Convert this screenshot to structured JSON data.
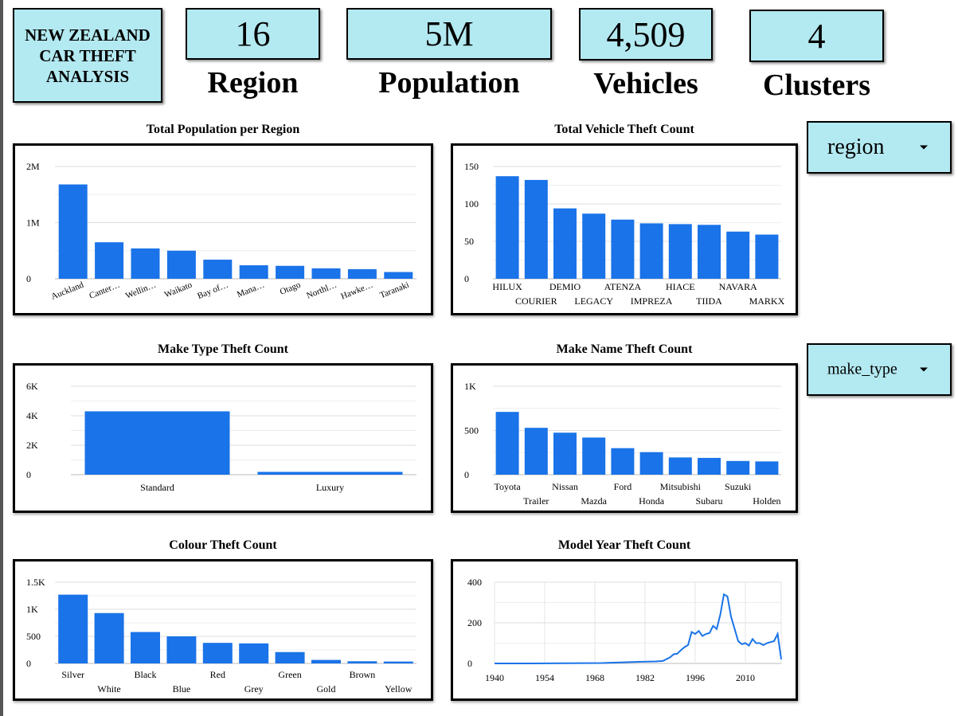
{
  "header": {
    "title": "NEW ZEALAND CAR THEFT ANALYSIS",
    "kpis": [
      {
        "value": "16",
        "label": "Region"
      },
      {
        "value": "5M",
        "label": "Population"
      },
      {
        "value": "4,509",
        "label": "Vehicles"
      },
      {
        "value": "4",
        "label": "Clusters"
      }
    ]
  },
  "filters": {
    "region": {
      "selected": "region"
    },
    "make_type": {
      "selected": "make_type"
    }
  },
  "colors": {
    "bar": "#1a73e8",
    "accent": "#b3e9f1",
    "grid": "#e0e0e0"
  },
  "icons": {
    "dropdown": "caret-down-icon"
  },
  "chart_data": [
    {
      "id": "population",
      "type": "bar",
      "title": "Total Population per Region",
      "categories": [
        "Auckland",
        "Canter…",
        "Wellin…",
        "Waikato",
        "Bay of…",
        "Mana…",
        "Otago",
        "Northl…",
        "Hawke…",
        "Taranaki"
      ],
      "values": [
        1680000,
        650000,
        540000,
        500000,
        340000,
        240000,
        230000,
        185000,
        170000,
        120000
      ],
      "ylim": [
        0,
        2000000
      ],
      "yticks": [
        {
          "v": 0,
          "label": "0"
        },
        {
          "v": 1000000,
          "label": "1M"
        },
        {
          "v": 2000000,
          "label": "2M"
        }
      ],
      "grid": true,
      "rotated_labels": true
    },
    {
      "id": "vehicle",
      "type": "bar",
      "title": "Total Vehicle Theft Count",
      "categories": [
        "HILUX",
        "COURIER",
        "DEMIO",
        "LEGACY",
        "ATENZA",
        "IMPREZA",
        "HIACE",
        "TIIDA",
        "NAVARA",
        "MARKX"
      ],
      "values": [
        137,
        132,
        94,
        87,
        79,
        74,
        73,
        72,
        63,
        59
      ],
      "ylim": [
        0,
        150
      ],
      "yticks": [
        {
          "v": 0,
          "label": "0"
        },
        {
          "v": 50,
          "label": "50"
        },
        {
          "v": 100,
          "label": "100"
        },
        {
          "v": 150,
          "label": "150"
        }
      ],
      "grid": true
    },
    {
      "id": "maketype",
      "type": "bar",
      "title": "Make Type Theft Count",
      "categories": [
        "Standard",
        "Luxury"
      ],
      "values": [
        4300,
        190
      ],
      "ylim": [
        0,
        6000
      ],
      "yticks": [
        {
          "v": 0,
          "label": "0"
        },
        {
          "v": 2000,
          "label": "2K"
        },
        {
          "v": 4000,
          "label": "4K"
        },
        {
          "v": 6000,
          "label": "6K"
        }
      ],
      "grid": true
    },
    {
      "id": "makename",
      "type": "bar",
      "title": "Make Name Theft Count",
      "categories": [
        "Toyota",
        "Trailer",
        "Nissan",
        "Mazda",
        "Ford",
        "Honda",
        "Mitsubishi",
        "Subaru",
        "Suzuki",
        "Holden"
      ],
      "values": [
        710,
        530,
        475,
        420,
        300,
        255,
        195,
        190,
        155,
        150
      ],
      "ylim": [
        0,
        1000
      ],
      "yticks": [
        {
          "v": 0,
          "label": "0"
        },
        {
          "v": 500,
          "label": "500"
        },
        {
          "v": 1000,
          "label": "1K"
        }
      ],
      "grid": true
    },
    {
      "id": "colour",
      "type": "bar",
      "title": "Colour Theft Count",
      "categories": [
        "Silver",
        "White",
        "Black",
        "Blue",
        "Red",
        "Grey",
        "Green",
        "Gold",
        "Brown",
        "Yellow"
      ],
      "values": [
        1270,
        930,
        580,
        500,
        380,
        370,
        210,
        65,
        40,
        35
      ],
      "ylim": [
        0,
        1500
      ],
      "yticks": [
        {
          "v": 0,
          "label": "0"
        },
        {
          "v": 500,
          "label": "500"
        },
        {
          "v": 1000,
          "label": "1K"
        },
        {
          "v": 1500,
          "label": "1.5K"
        }
      ],
      "grid": true
    },
    {
      "id": "modelyear",
      "type": "line",
      "title": "Model Year Theft Count",
      "x": [
        1940,
        1950,
        1960,
        1970,
        1975,
        1980,
        1985,
        1987,
        1989,
        1990,
        1991,
        1992,
        1993,
        1994,
        1995,
        1996,
        1997,
        1998,
        1999,
        2000,
        2001,
        2002,
        2003,
        2004,
        2005,
        2006,
        2007,
        2008,
        2009,
        2010,
        2011,
        2012,
        2013,
        2014,
        2015,
        2016,
        2017,
        2018,
        2019,
        2020
      ],
      "values": [
        0,
        0,
        1,
        2,
        5,
        8,
        10,
        12,
        30,
        45,
        48,
        65,
        80,
        90,
        155,
        145,
        160,
        135,
        145,
        150,
        185,
        170,
        240,
        340,
        330,
        230,
        170,
        110,
        95,
        100,
        88,
        120,
        100,
        100,
        90,
        100,
        105,
        110,
        145,
        20
      ],
      "xlim": [
        1940,
        2020
      ],
      "ylim": [
        0,
        400
      ],
      "xticks": [
        1940,
        1954,
        1968,
        1982,
        1996,
        2010
      ],
      "yticks": [
        {
          "v": 0,
          "label": "0"
        },
        {
          "v": 200,
          "label": "200"
        },
        {
          "v": 400,
          "label": "400"
        }
      ],
      "grid": true
    }
  ]
}
